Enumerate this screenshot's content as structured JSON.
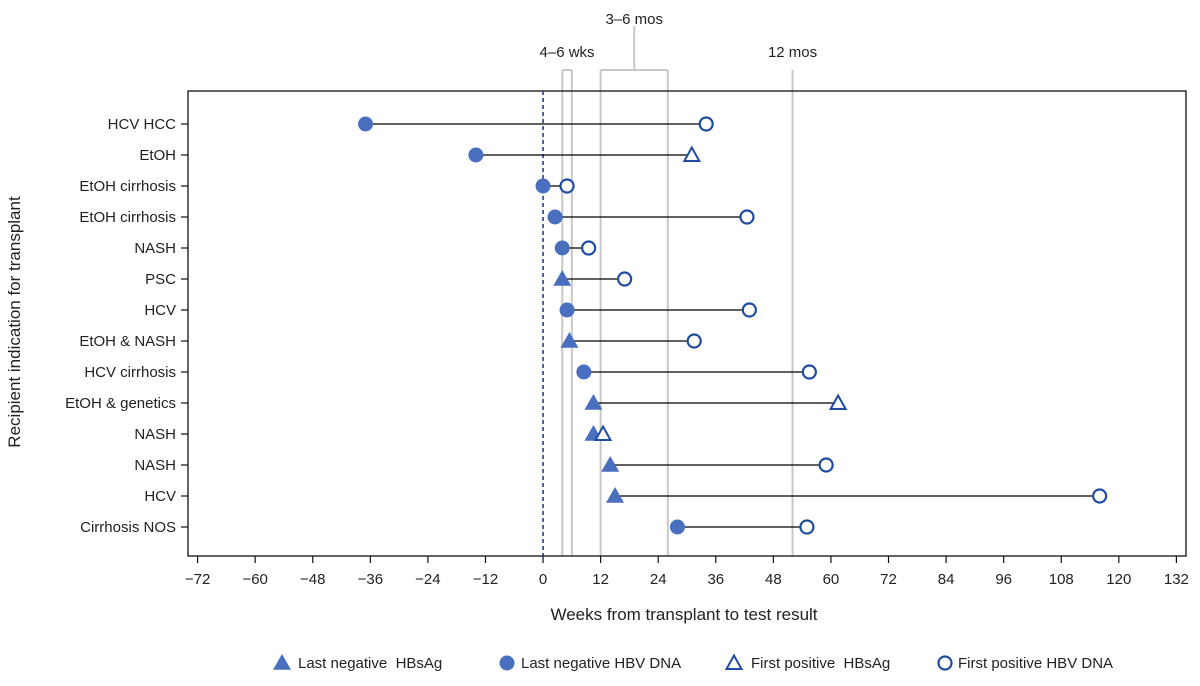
{
  "chart_data": {
    "type": "scatter",
    "subtype": "dumbbell",
    "title": "",
    "xlabel": "Weeks from transplant to test result",
    "ylabel": "Recipient indication for transplant",
    "xlim": [
      -74,
      134
    ],
    "xticks": [
      -72,
      -60,
      -48,
      -36,
      -24,
      -12,
      0,
      12,
      24,
      36,
      48,
      60,
      72,
      84,
      96,
      108,
      120,
      132
    ],
    "grid": false,
    "legend_position": "bottom",
    "colors": {
      "marker": "#4a6fbf",
      "open_marker": "#1f4c9e",
      "reference": "#c8c8c8",
      "connector": "#000000",
      "zero_line": "#1f3f8f"
    },
    "reference_lines": [
      {
        "label": "4–6 wks",
        "x": [
          4,
          6
        ]
      },
      {
        "label": "3–6 mos",
        "x": [
          12,
          26
        ]
      },
      {
        "label": "12 mos",
        "x": [
          52
        ]
      }
    ],
    "zero_line": 0,
    "legend": [
      {
        "key": "last_neg_hbsag",
        "label": "Last negative  HBsAg"
      },
      {
        "key": "last_neg_dna",
        "label": "Last negative HBV DNA"
      },
      {
        "key": "first_pos_hbsag",
        "label": "First positive  HBsAg"
      },
      {
        "key": "first_pos_dna",
        "label": "First positive HBV DNA"
      }
    ],
    "rows": [
      {
        "label": "HCV HCC",
        "start": -37,
        "start_type": "last_neg_dna",
        "end": 34,
        "end_type": "first_pos_dna"
      },
      {
        "label": "EtOH",
        "start": -14,
        "start_type": "last_neg_dna",
        "end": 31,
        "end_type": "first_pos_hbsag"
      },
      {
        "label": "EtOH cirrhosis",
        "start": 0,
        "start_type": "last_neg_dna",
        "end": 5,
        "end_type": "first_pos_dna"
      },
      {
        "label": "EtOH cirrhosis",
        "start": 2.5,
        "start_type": "last_neg_dna",
        "end": 42.5,
        "end_type": "first_pos_dna"
      },
      {
        "label": "NASH",
        "start": 4,
        "start_type": "last_neg_dna",
        "end": 9.5,
        "end_type": "first_pos_dna"
      },
      {
        "label": "PSC",
        "start": 4,
        "start_type": "last_neg_hbsag",
        "end": 17,
        "end_type": "first_pos_dna"
      },
      {
        "label": "HCV",
        "start": 5,
        "start_type": "last_neg_dna",
        "end": 43,
        "end_type": "first_pos_dna"
      },
      {
        "label": "EtOH & NASH",
        "start": 5.5,
        "start_type": "last_neg_hbsag",
        "end": 31.5,
        "end_type": "first_pos_dna"
      },
      {
        "label": "HCV cirrhosis",
        "start": 8.5,
        "start_type": "last_neg_dna",
        "end": 55.5,
        "end_type": "first_pos_dna"
      },
      {
        "label": "EtOH & genetics",
        "start": 10.5,
        "start_type": "last_neg_hbsag",
        "end": 61.5,
        "end_type": "first_pos_hbsag"
      },
      {
        "label": "NASH",
        "start": 10.5,
        "start_type": "last_neg_hbsag",
        "end": 12.5,
        "end_type": "first_pos_hbsag"
      },
      {
        "label": "NASH",
        "start": 14,
        "start_type": "last_neg_hbsag",
        "end": 59,
        "end_type": "first_pos_dna"
      },
      {
        "label": "HCV",
        "start": 15,
        "start_type": "last_neg_hbsag",
        "end": 116,
        "end_type": "first_pos_dna"
      },
      {
        "label": "Cirrhosis NOS",
        "start": 28,
        "start_type": "last_neg_dna",
        "end": 55,
        "end_type": "first_pos_dna"
      }
    ]
  }
}
